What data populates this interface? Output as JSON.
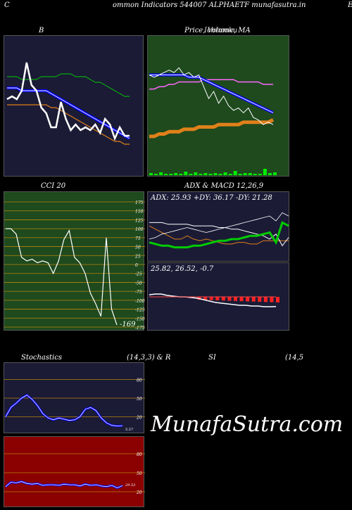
{
  "header": {
    "left_letter": "C",
    "title": "ommon  Indicators 544007 ALPHAETF munafasutra.in",
    "right_letter": "E"
  },
  "panels": {
    "bollinger": {
      "title": "B"
    },
    "price": {
      "title": "Price,  Volume,  MA",
      "overlay": "Ichimoku"
    },
    "cci": {
      "title": "CCI 20",
      "ticks": [
        "175",
        "150",
        "125",
        "100",
        "75",
        "50",
        "25",
        "0",
        "-25",
        "-50",
        "-75",
        "-100",
        "-125",
        "-150",
        "-175"
      ],
      "last_value": "-169"
    },
    "adx": {
      "title": "ADX  & MACD 12,26,9",
      "adx_text": "ADX: 25.93  +DY: 36.17 -DY: 21.28",
      "macd_text": "25.82,  26.52,  -0.7"
    },
    "stoch": {
      "title_left": "Stochastics",
      "title_mid": "(14,3,3) & R",
      "ticks": [
        "80",
        "50",
        "20"
      ],
      "last_value": "5.57"
    },
    "rsi": {
      "title_left": "SI",
      "title_right": "(14,5",
      "ticks": [
        "80",
        "50",
        "20"
      ],
      "last_value": "29.53"
    }
  },
  "watermark": "MunafaSutra.com",
  "colors": {
    "navy_bg": "#1b1b36",
    "green_bg": "#1e4a1e",
    "red_bg": "#8b0000",
    "grid_orange": "#b8860b",
    "price_line": "#ffffff",
    "ma_blue": "#0000ff",
    "ma_green": "#00cc00",
    "ma_orange": "#e0801a",
    "volume_green": "#00ee00"
  },
  "chart_data": [
    {
      "type": "line",
      "title": "B",
      "series": [
        {
          "values": [
            105,
            106,
            105,
            108,
            118,
            110,
            108,
            102,
            100,
            95,
            95,
            104,
            98,
            94,
            96,
            94,
            95,
            94,
            96,
            93,
            98,
            96,
            91,
            95,
            92,
            92
          ]
        },
        {
          "values": [
            109,
            109,
            109,
            108,
            108,
            108,
            108,
            108,
            108,
            107,
            106,
            105,
            104,
            103,
            102,
            101,
            100,
            99,
            98,
            97,
            96,
            95,
            94,
            93,
            92,
            91
          ]
        },
        {
          "values": [
            113,
            113,
            113,
            112,
            112,
            112,
            112,
            113,
            113,
            113,
            113,
            114,
            114,
            114,
            113,
            113,
            113,
            112,
            111,
            111,
            110,
            109,
            108,
            107,
            106,
            106
          ]
        },
        {
          "values": [
            103,
            103,
            103,
            103,
            103,
            103,
            103,
            103,
            103,
            102,
            102,
            101,
            100,
            99,
            98,
            97,
            96,
            95,
            94,
            93,
            92,
            91,
            90,
            90,
            89,
            89
          ]
        }
      ]
    },
    {
      "type": "line",
      "title": "Price,  Volume,  MA",
      "series": [
        {
          "values": [
            110,
            109,
            110,
            111,
            112,
            111,
            113,
            110,
            111,
            109,
            110,
            105,
            100,
            103,
            98,
            101,
            97,
            95,
            96,
            94,
            96,
            92,
            91,
            89,
            90,
            89
          ]
        },
        {
          "values": [
            110,
            110,
            110,
            110,
            110,
            110,
            110,
            110,
            109,
            109,
            109,
            108,
            107,
            106,
            105,
            104,
            103,
            102,
            101,
            100,
            99,
            98,
            97,
            96,
            95,
            94
          ]
        },
        {
          "values": [
            104,
            104,
            105,
            105,
            106,
            106,
            107,
            107,
            107,
            107,
            107,
            108,
            108,
            108,
            108,
            108,
            108,
            108,
            107,
            107,
            107,
            107,
            107,
            106,
            106,
            106
          ]
        },
        {
          "values": [
            84,
            84,
            85,
            85,
            86,
            86,
            86,
            87,
            87,
            87,
            88,
            88,
            88,
            88,
            89,
            89,
            89,
            89,
            89,
            90,
            90,
            90,
            90,
            90,
            90,
            91
          ]
        }
      ],
      "volume": [
        3,
        2,
        4,
        2,
        2,
        3,
        2,
        5,
        2,
        4,
        2,
        3,
        2,
        3,
        2,
        4,
        2,
        6,
        2,
        3,
        3,
        2,
        2,
        9,
        3,
        4
      ]
    },
    {
      "type": "line",
      "title": "CCI 20",
      "ylim": [
        -175,
        175
      ],
      "series": [
        {
          "values": [
            100,
            100,
            85,
            20,
            10,
            15,
            5,
            10,
            5,
            -25,
            10,
            70,
            95,
            20,
            5,
            -25,
            -80,
            -110,
            -145,
            75,
            -125,
            -169
          ]
        }
      ]
    },
    {
      "type": "line",
      "title": "ADX  & MACD 12,26,9",
      "series": [
        {
          "values": [
            20,
            19,
            18,
            18,
            17,
            17,
            17,
            18,
            18,
            19,
            20,
            21,
            21,
            22,
            22,
            23,
            24,
            24,
            25,
            26,
            20,
            32,
            30
          ]
        },
        {
          "values": [
            32,
            32,
            32,
            31,
            31,
            31,
            31,
            30,
            30,
            30,
            30,
            29,
            29,
            28,
            28,
            27,
            26,
            25,
            24,
            22,
            25,
            18,
            23
          ]
        },
        {
          "values": [
            22,
            23,
            25,
            26,
            27,
            28,
            29,
            28,
            27,
            26,
            27,
            28,
            29,
            30,
            31,
            32,
            33,
            34,
            35,
            36,
            33,
            38,
            36
          ]
        },
        {
          "values": [
            30,
            28,
            26,
            24,
            22,
            22,
            24,
            22,
            21,
            22,
            21,
            20,
            19,
            19,
            20,
            20,
            19,
            19,
            21,
            21,
            21,
            21,
            21
          ]
        }
      ],
      "macd": [
        27.5,
        27.6,
        27.6,
        27.4,
        27.3,
        27.2,
        27.2,
        27.1,
        27,
        26.8,
        26.6,
        26.4,
        26.3,
        26.2,
        26.1,
        26,
        26,
        25.9,
        25.9,
        25.8,
        25.8,
        25.82
      ]
    },
    {
      "type": "line",
      "title": "Stochastics",
      "ylim": [
        0,
        100
      ],
      "series": [
        {
          "values": [
            20,
            35,
            42,
            50,
            55,
            48,
            38,
            25,
            18,
            15,
            18,
            16,
            14,
            15,
            20,
            32,
            35,
            30,
            18,
            10,
            6,
            5,
            5.57
          ]
        }
      ]
    },
    {
      "type": "line",
      "title": "SI",
      "ylim": [
        0,
        100
      ],
      "series": [
        {
          "values": [
            28,
            35,
            34,
            36,
            33,
            32,
            33,
            30,
            31,
            31,
            30,
            32,
            31,
            31,
            29,
            32,
            30,
            31,
            29,
            28,
            30,
            26,
            29.53
          ]
        }
      ]
    }
  ]
}
